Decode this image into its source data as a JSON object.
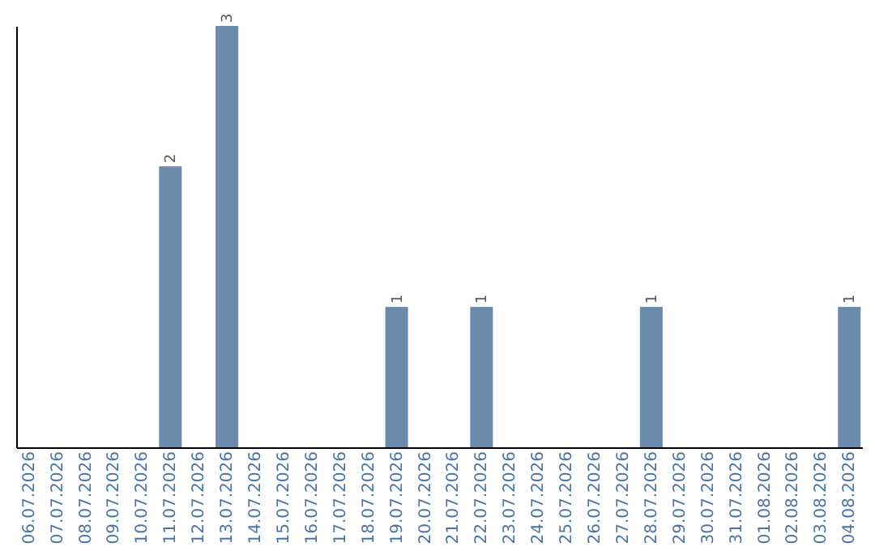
{
  "chart_data": {
    "type": "bar",
    "categories": [
      "06.07.2026",
      "07.07.2026",
      "08.07.2026",
      "09.07.2026",
      "10.07.2026",
      "11.07.2026",
      "12.07.2026",
      "13.07.2026",
      "14.07.2026",
      "15.07.2026",
      "16.07.2026",
      "17.07.2026",
      "18.07.2026",
      "19.07.2026",
      "20.07.2026",
      "21.07.2026",
      "22.07.2026",
      "23.07.2026",
      "24.07.2026",
      "25.07.2026",
      "26.07.2026",
      "27.07.2026",
      "28.07.2026",
      "29.07.2026",
      "30.07.2026",
      "31.07.2026",
      "01.08.2026",
      "02.08.2026",
      "03.08.2026",
      "04.08.2026"
    ],
    "values": [
      0,
      0,
      0,
      0,
      0,
      2,
      0,
      3,
      0,
      0,
      0,
      0,
      0,
      1,
      0,
      0,
      1,
      0,
      0,
      0,
      0,
      0,
      1,
      0,
      0,
      0,
      0,
      0,
      0,
      1
    ],
    "value_labels": [
      null,
      null,
      null,
      null,
      null,
      "2",
      null,
      "3",
      null,
      null,
      null,
      null,
      null,
      "1",
      null,
      null,
      "1",
      null,
      null,
      null,
      null,
      null,
      "1",
      null,
      null,
      null,
      null,
      null,
      null,
      "1"
    ],
    "color": "#6a8bab",
    "grid": false
  }
}
